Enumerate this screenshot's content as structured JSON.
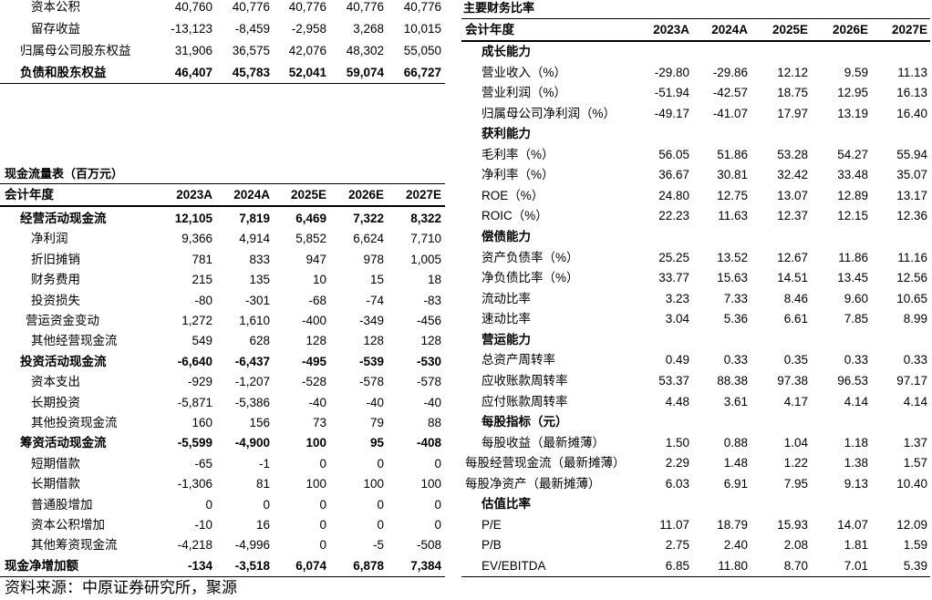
{
  "balance_sheet_tail": {
    "rows": [
      {
        "label": "资本公积",
        "type": "item",
        "values": [
          "40,760",
          "40,776",
          "40,776",
          "40,776",
          "40,776"
        ]
      },
      {
        "label": "留存收益",
        "type": "item",
        "values": [
          "-13,123",
          "-8,459",
          "-2,958",
          "3,268",
          "10,015"
        ]
      },
      {
        "label": "归属母公司股东权益",
        "type": "item",
        "values": [
          "31,906",
          "36,575",
          "42,076",
          "48,302",
          "55,050"
        ]
      },
      {
        "label": "负债和股东权益",
        "type": "subtotal",
        "values": [
          "46,407",
          "45,783",
          "52,041",
          "59,074",
          "66,727"
        ]
      }
    ]
  },
  "cash_flow": {
    "title": "现金流量表（百万元）",
    "header_label": "会计年度",
    "years": [
      "2023A",
      "2024A",
      "2025E",
      "2026E",
      "2027E"
    ],
    "rows": [
      {
        "label": "经营活动现金流",
        "type": "subtotal",
        "values": [
          "12,105",
          "7,819",
          "6,469",
          "7,322",
          "8,322"
        ]
      },
      {
        "label": "净利润",
        "type": "item",
        "values": [
          "9,366",
          "4,914",
          "5,852",
          "6,624",
          "7,710"
        ]
      },
      {
        "label": "折旧摊销",
        "type": "item",
        "values": [
          "781",
          "833",
          "947",
          "978",
          "1,005"
        ]
      },
      {
        "label": "财务费用",
        "type": "item",
        "values": [
          "215",
          "135",
          "10",
          "15",
          "18"
        ]
      },
      {
        "label": "投资损失",
        "type": "item",
        "values": [
          "-80",
          "-301",
          "-68",
          "-74",
          "-83"
        ]
      },
      {
        "label": "营运资金变动",
        "type": "item",
        "values": [
          "1,272",
          "1,610",
          "-400",
          "-349",
          "-456"
        ]
      },
      {
        "label": "其他经营现金流",
        "type": "item",
        "values": [
          "549",
          "628",
          "128",
          "128",
          "128"
        ]
      },
      {
        "label": "投资活动现金流",
        "type": "subtotal",
        "values": [
          "-6,640",
          "-6,437",
          "-495",
          "-539",
          "-530"
        ]
      },
      {
        "label": "资本支出",
        "type": "item",
        "values": [
          "-929",
          "-1,207",
          "-528",
          "-578",
          "-578"
        ]
      },
      {
        "label": "长期投资",
        "type": "item",
        "values": [
          "-5,871",
          "-5,386",
          "-40",
          "-40",
          "-40"
        ]
      },
      {
        "label": "其他投资现金流",
        "type": "item",
        "values": [
          "160",
          "156",
          "73",
          "79",
          "88"
        ]
      },
      {
        "label": "筹资活动现金流",
        "type": "subtotal",
        "values": [
          "-5,599",
          "-4,900",
          "100",
          "95",
          "-408"
        ]
      },
      {
        "label": "短期借款",
        "type": "item",
        "values": [
          "-65",
          "-1",
          "0",
          "0",
          "0"
        ]
      },
      {
        "label": "长期借款",
        "type": "item",
        "values": [
          "-1,306",
          "81",
          "100",
          "100",
          "100"
        ]
      },
      {
        "label": "普通股增加",
        "type": "item",
        "values": [
          "0",
          "0",
          "0",
          "0",
          "0"
        ]
      },
      {
        "label": "资本公积增加",
        "type": "item",
        "values": [
          "-10",
          "16",
          "0",
          "0",
          "0"
        ]
      },
      {
        "label": "其他筹资现金流",
        "type": "item",
        "values": [
          "-4,218",
          "-4,996",
          "0",
          "-5",
          "-508"
        ]
      },
      {
        "label": "现金净增加额",
        "type": "total",
        "values": [
          "-134",
          "-3,518",
          "6,074",
          "6,878",
          "7,384"
        ]
      }
    ]
  },
  "ratios": {
    "title": "主要财务比率",
    "header_label": "会计年度",
    "years": [
      "2023A",
      "2024A",
      "2025E",
      "2026E",
      "2027E"
    ],
    "rows": [
      {
        "label": "成长能力",
        "type": "section"
      },
      {
        "label": "营业收入（%）",
        "type": "item",
        "values": [
          "-29.80",
          "-29.86",
          "12.12",
          "9.59",
          "11.13"
        ]
      },
      {
        "label": "营业利润（%）",
        "type": "item",
        "values": [
          "-51.94",
          "-42.57",
          "18.75",
          "12.95",
          "16.13"
        ]
      },
      {
        "label": "归属母公司净利润（%）",
        "type": "item",
        "values": [
          "-49.17",
          "-41.07",
          "17.97",
          "13.19",
          "16.40"
        ]
      },
      {
        "label": "获利能力",
        "type": "section"
      },
      {
        "label": "毛利率（%）",
        "type": "item",
        "values": [
          "56.05",
          "51.86",
          "53.28",
          "54.27",
          "55.94"
        ]
      },
      {
        "label": "净利率（%）",
        "type": "item",
        "values": [
          "36.67",
          "30.81",
          "32.42",
          "33.48",
          "35.07"
        ]
      },
      {
        "label": "ROE（%）",
        "type": "item",
        "values": [
          "24.80",
          "12.75",
          "13.07",
          "12.89",
          "13.17"
        ]
      },
      {
        "label": "ROIC（%）",
        "type": "item",
        "values": [
          "22.23",
          "11.63",
          "12.37",
          "12.15",
          "12.36"
        ]
      },
      {
        "label": "偿债能力",
        "type": "section"
      },
      {
        "label": "资产负债率（%）",
        "type": "item",
        "values": [
          "25.25",
          "13.52",
          "12.67",
          "11.86",
          "11.16"
        ]
      },
      {
        "label": "净负债比率（%）",
        "type": "item",
        "values": [
          "33.77",
          "15.63",
          "14.51",
          "13.45",
          "12.56"
        ]
      },
      {
        "label": "流动比率",
        "type": "item",
        "values": [
          "3.23",
          "7.33",
          "8.46",
          "9.60",
          "10.65"
        ]
      },
      {
        "label": "速动比率",
        "type": "item",
        "values": [
          "3.04",
          "5.36",
          "6.61",
          "7.85",
          "8.99"
        ]
      },
      {
        "label": "营运能力",
        "type": "section"
      },
      {
        "label": "总资产周转率",
        "type": "item",
        "values": [
          "0.49",
          "0.33",
          "0.35",
          "0.33",
          "0.33"
        ]
      },
      {
        "label": "应收账款周转率",
        "type": "item",
        "values": [
          "53.37",
          "88.38",
          "97.38",
          "96.53",
          "97.17"
        ]
      },
      {
        "label": "应付账款周转率",
        "type": "item",
        "values": [
          "4.48",
          "3.61",
          "4.17",
          "4.14",
          "4.14"
        ]
      },
      {
        "label": "每股指标（元）",
        "type": "section"
      },
      {
        "label": "每股收益（最新摊薄）",
        "type": "item",
        "values": [
          "1.50",
          "0.88",
          "1.04",
          "1.18",
          "1.37"
        ]
      },
      {
        "label": "每股经营现金流（最新摊薄）",
        "type": "item",
        "values": [
          "2.29",
          "1.48",
          "1.22",
          "1.38",
          "1.57"
        ]
      },
      {
        "label": "每股净资产（最新摊薄）",
        "type": "item",
        "values": [
          "6.03",
          "6.91",
          "7.95",
          "9.13",
          "10.40"
        ]
      },
      {
        "label": "估值比率",
        "type": "section"
      },
      {
        "label": "P/E",
        "type": "item",
        "values": [
          "11.07",
          "18.79",
          "15.93",
          "14.07",
          "12.09"
        ]
      },
      {
        "label": "P/B",
        "type": "item",
        "values": [
          "2.75",
          "2.40",
          "2.08",
          "1.81",
          "1.59"
        ]
      },
      {
        "label": "EV/EBITDA",
        "type": "item",
        "values": [
          "6.85",
          "11.80",
          "8.70",
          "7.01",
          "5.39"
        ]
      }
    ]
  },
  "source": "资料来源：中原证券研究所，聚源"
}
